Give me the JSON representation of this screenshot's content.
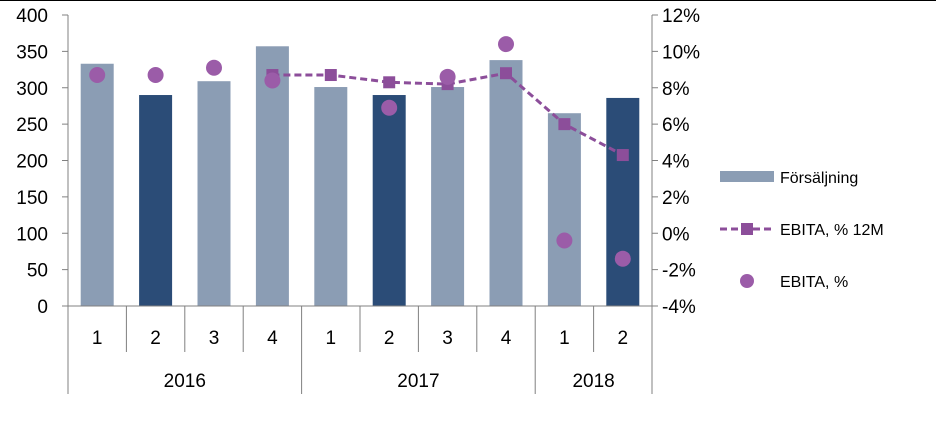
{
  "chart_data": {
    "type": "bar",
    "quarters": [
      "1",
      "2",
      "3",
      "4",
      "1",
      "2",
      "3",
      "4",
      "1",
      "2"
    ],
    "years": [
      {
        "label": "2016",
        "span": 4
      },
      {
        "label": "2017",
        "span": 4
      },
      {
        "label": "2018",
        "span": 2
      }
    ],
    "y_left": {
      "min": 0,
      "max": 400,
      "step": 50,
      "ticks": [
        "0",
        "50",
        "100",
        "150",
        "200",
        "250",
        "300",
        "350",
        "400"
      ]
    },
    "y_right": {
      "min": -4,
      "max": 12,
      "step": 2,
      "ticks": [
        "-4%",
        "-2%",
        "0%",
        "2%",
        "4%",
        "6%",
        "8%",
        "10%",
        "12%"
      ]
    },
    "grid": false,
    "legend_position": "right",
    "series": [
      {
        "name": "Försäljning",
        "kind": "bar",
        "axis": "left",
        "values": [
          333,
          290,
          309,
          357,
          301,
          290,
          301,
          338,
          265,
          286
        ],
        "colors": [
          "#8b9db4",
          "#2b4c77",
          "#8b9db4",
          "#8b9db4",
          "#8b9db4",
          "#2b4c77",
          "#8b9db4",
          "#8b9db4",
          "#8b9db4",
          "#2b4c77"
        ],
        "legend_color": "#8b9db4"
      },
      {
        "name": "EBITA, % 12M",
        "kind": "line",
        "axis": "right",
        "color": "#8c4e9a",
        "values": [
          null,
          null,
          null,
          8.7,
          8.7,
          8.3,
          8.2,
          8.8,
          6.0,
          4.3
        ]
      },
      {
        "name": "EBITA, %",
        "kind": "scatter",
        "axis": "right",
        "color": "#9b5ca8",
        "values": [
          8.7,
          8.7,
          9.1,
          8.4,
          null,
          6.9,
          8.6,
          10.4,
          -0.4,
          -1.4
        ]
      }
    ]
  }
}
